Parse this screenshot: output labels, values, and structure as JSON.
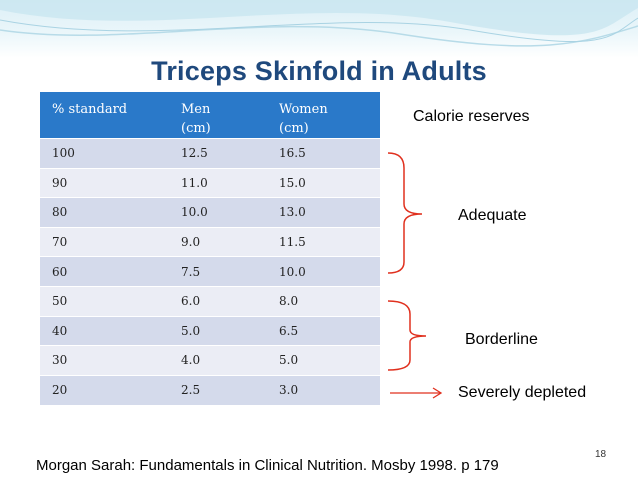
{
  "slide": {
    "title": "Triceps Skinfold in Adults",
    "page_number": "18",
    "footer": "Morgan Sarah: Fundamentals in Clinical Nutrition. Mosby 1998. p 179"
  },
  "table": {
    "headers": [
      [
        "% standard"
      ],
      [
        "Men",
        "(cm)"
      ],
      [
        "Women",
        "(cm)"
      ]
    ],
    "rows": [
      [
        "100",
        "12.5",
        "16.5"
      ],
      [
        "90",
        "11.0",
        "15.0"
      ],
      [
        "80",
        "10.0",
        "13.0"
      ],
      [
        "70",
        "9.0",
        "11.5"
      ],
      [
        "60",
        "7.5",
        "10.0"
      ],
      [
        "50",
        "6.0",
        "8.0"
      ],
      [
        "40",
        "5.0",
        "6.5"
      ],
      [
        "30",
        "4.0",
        "5.0"
      ],
      [
        "20",
        "2.5",
        "3.0"
      ]
    ]
  },
  "annotations": {
    "calorie_reserves": "Calorie reserves",
    "adequate": "Adequate",
    "borderline": "Borderline",
    "severely_depleted": "Severely depleted"
  },
  "colors": {
    "title": "#1f497d",
    "table_header": "#2a79c9",
    "row_odd": "#d4daeb",
    "row_even": "#ebedf5",
    "bracket": "#e0301e"
  }
}
